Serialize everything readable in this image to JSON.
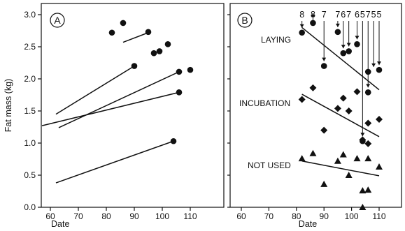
{
  "chart_data": [
    {
      "type": "scatter",
      "panel": "A",
      "xlabel": "Date",
      "ylabel": "Fat mass (kg)",
      "xlim": [
        55,
        115
      ],
      "ylim": [
        0.0,
        3.3
      ],
      "xticks": [
        60,
        70,
        80,
        90,
        100,
        110
      ],
      "yticks": [
        "0.0",
        "0.5",
        "1.0",
        "1.5",
        "2.0",
        "2.5",
        "3.0"
      ],
      "points": [
        {
          "x": 82,
          "y": 2.72
        },
        {
          "x": 86,
          "y": 2.87
        },
        {
          "x": 95,
          "y": 2.73
        },
        {
          "x": 97,
          "y": 2.4
        },
        {
          "x": 99,
          "y": 2.43
        },
        {
          "x": 102,
          "y": 2.54
        },
        {
          "x": 90,
          "y": 2.2
        },
        {
          "x": 106,
          "y": 2.11
        },
        {
          "x": 110,
          "y": 2.14
        },
        {
          "x": 106,
          "y": 1.79
        },
        {
          "x": 104,
          "y": 1.03
        }
      ],
      "lines": [
        {
          "x1": 86,
          "y1": 2.57,
          "x2": 95,
          "y2": 2.72
        },
        {
          "x1": 62,
          "y1": 1.45,
          "x2": 90,
          "y2": 2.2
        },
        {
          "x1": 63,
          "y1": 1.24,
          "x2": 106,
          "y2": 2.11
        },
        {
          "x1": 57,
          "y1": 1.27,
          "x2": 106,
          "y2": 1.79
        },
        {
          "x1": 62,
          "y1": 0.38,
          "x2": 104,
          "y2": 1.03
        }
      ]
    },
    {
      "type": "scatter",
      "panel": "B",
      "xlabel": "Date",
      "xlim": [
        55,
        115
      ],
      "ylim": [
        0.0,
        3.3
      ],
      "xticks": [
        60,
        70,
        80,
        90,
        100,
        110
      ],
      "series": [
        {
          "name": "LAYING",
          "marker": "circle",
          "points": [
            {
              "x": 82,
              "y": 2.72
            },
            {
              "x": 86,
              "y": 2.87
            },
            {
              "x": 90,
              "y": 2.2
            },
            {
              "x": 95,
              "y": 2.73
            },
            {
              "x": 97,
              "y": 2.4
            },
            {
              "x": 99,
              "y": 2.43
            },
            {
              "x": 102,
              "y": 2.54
            },
            {
              "x": 104,
              "y": 1.03
            },
            {
              "x": 106,
              "y": 2.11
            },
            {
              "x": 106,
              "y": 1.79
            },
            {
              "x": 110,
              "y": 2.14
            }
          ],
          "fit": {
            "x1": 82,
            "y1": 2.8,
            "x2": 110,
            "y2": 1.83
          }
        },
        {
          "name": "INCUBATION",
          "marker": "diamond",
          "points": [
            {
              "x": 82,
              "y": 1.68
            },
            {
              "x": 86,
              "y": 1.86
            },
            {
              "x": 90,
              "y": 1.2
            },
            {
              "x": 95,
              "y": 1.54
            },
            {
              "x": 97,
              "y": 1.7
            },
            {
              "x": 99,
              "y": 1.5
            },
            {
              "x": 102,
              "y": 1.8
            },
            {
              "x": 104,
              "y": 1.05
            },
            {
              "x": 106,
              "y": 0.99
            },
            {
              "x": 106,
              "y": 1.31
            },
            {
              "x": 110,
              "y": 1.37
            }
          ],
          "fit": {
            "x1": 82,
            "y1": 1.76,
            "x2": 110,
            "y2": 1.1
          }
        },
        {
          "name": "NOT USED",
          "marker": "triangle",
          "points": [
            {
              "x": 82,
              "y": 0.76
            },
            {
              "x": 86,
              "y": 0.84
            },
            {
              "x": 90,
              "y": 0.36
            },
            {
              "x": 95,
              "y": 0.72
            },
            {
              "x": 97,
              "y": 0.82
            },
            {
              "x": 99,
              "y": 0.5
            },
            {
              "x": 102,
              "y": 0.76
            },
            {
              "x": 104,
              "y": 0.26
            },
            {
              "x": 104,
              "y": 0.0
            },
            {
              "x": 106,
              "y": 0.76
            },
            {
              "x": 106,
              "y": 0.27
            },
            {
              "x": 110,
              "y": 0.63
            }
          ],
          "fit": {
            "x1": 82,
            "y1": 0.72,
            "x2": 110,
            "y2": 0.49
          }
        }
      ],
      "top_labels": [
        {
          "text": "8",
          "x": 82,
          "target_y": 2.72
        },
        {
          "text": "8",
          "x": 86,
          "target_y": 2.87
        },
        {
          "text": "7",
          "x": 90,
          "target_y": 2.2
        },
        {
          "text": "7",
          "x": 95,
          "target_y": 2.73
        },
        {
          "text": "6",
          "x": 97,
          "target_y": 2.4
        },
        {
          "text": "7",
          "x": 99,
          "target_y": 2.43
        },
        {
          "text": "6",
          "x": 102,
          "target_y": 2.54
        },
        {
          "text": "5",
          "x": 104,
          "target_y": 1.03
        },
        {
          "text": "7",
          "x": 106,
          "target_y": 1.79
        },
        {
          "text": "5",
          "x": 108,
          "target_y": 2.11
        },
        {
          "text": "5",
          "x": 110,
          "target_y": 2.14
        }
      ]
    }
  ],
  "panel_a_letter": "A",
  "panel_b_letter": "B"
}
